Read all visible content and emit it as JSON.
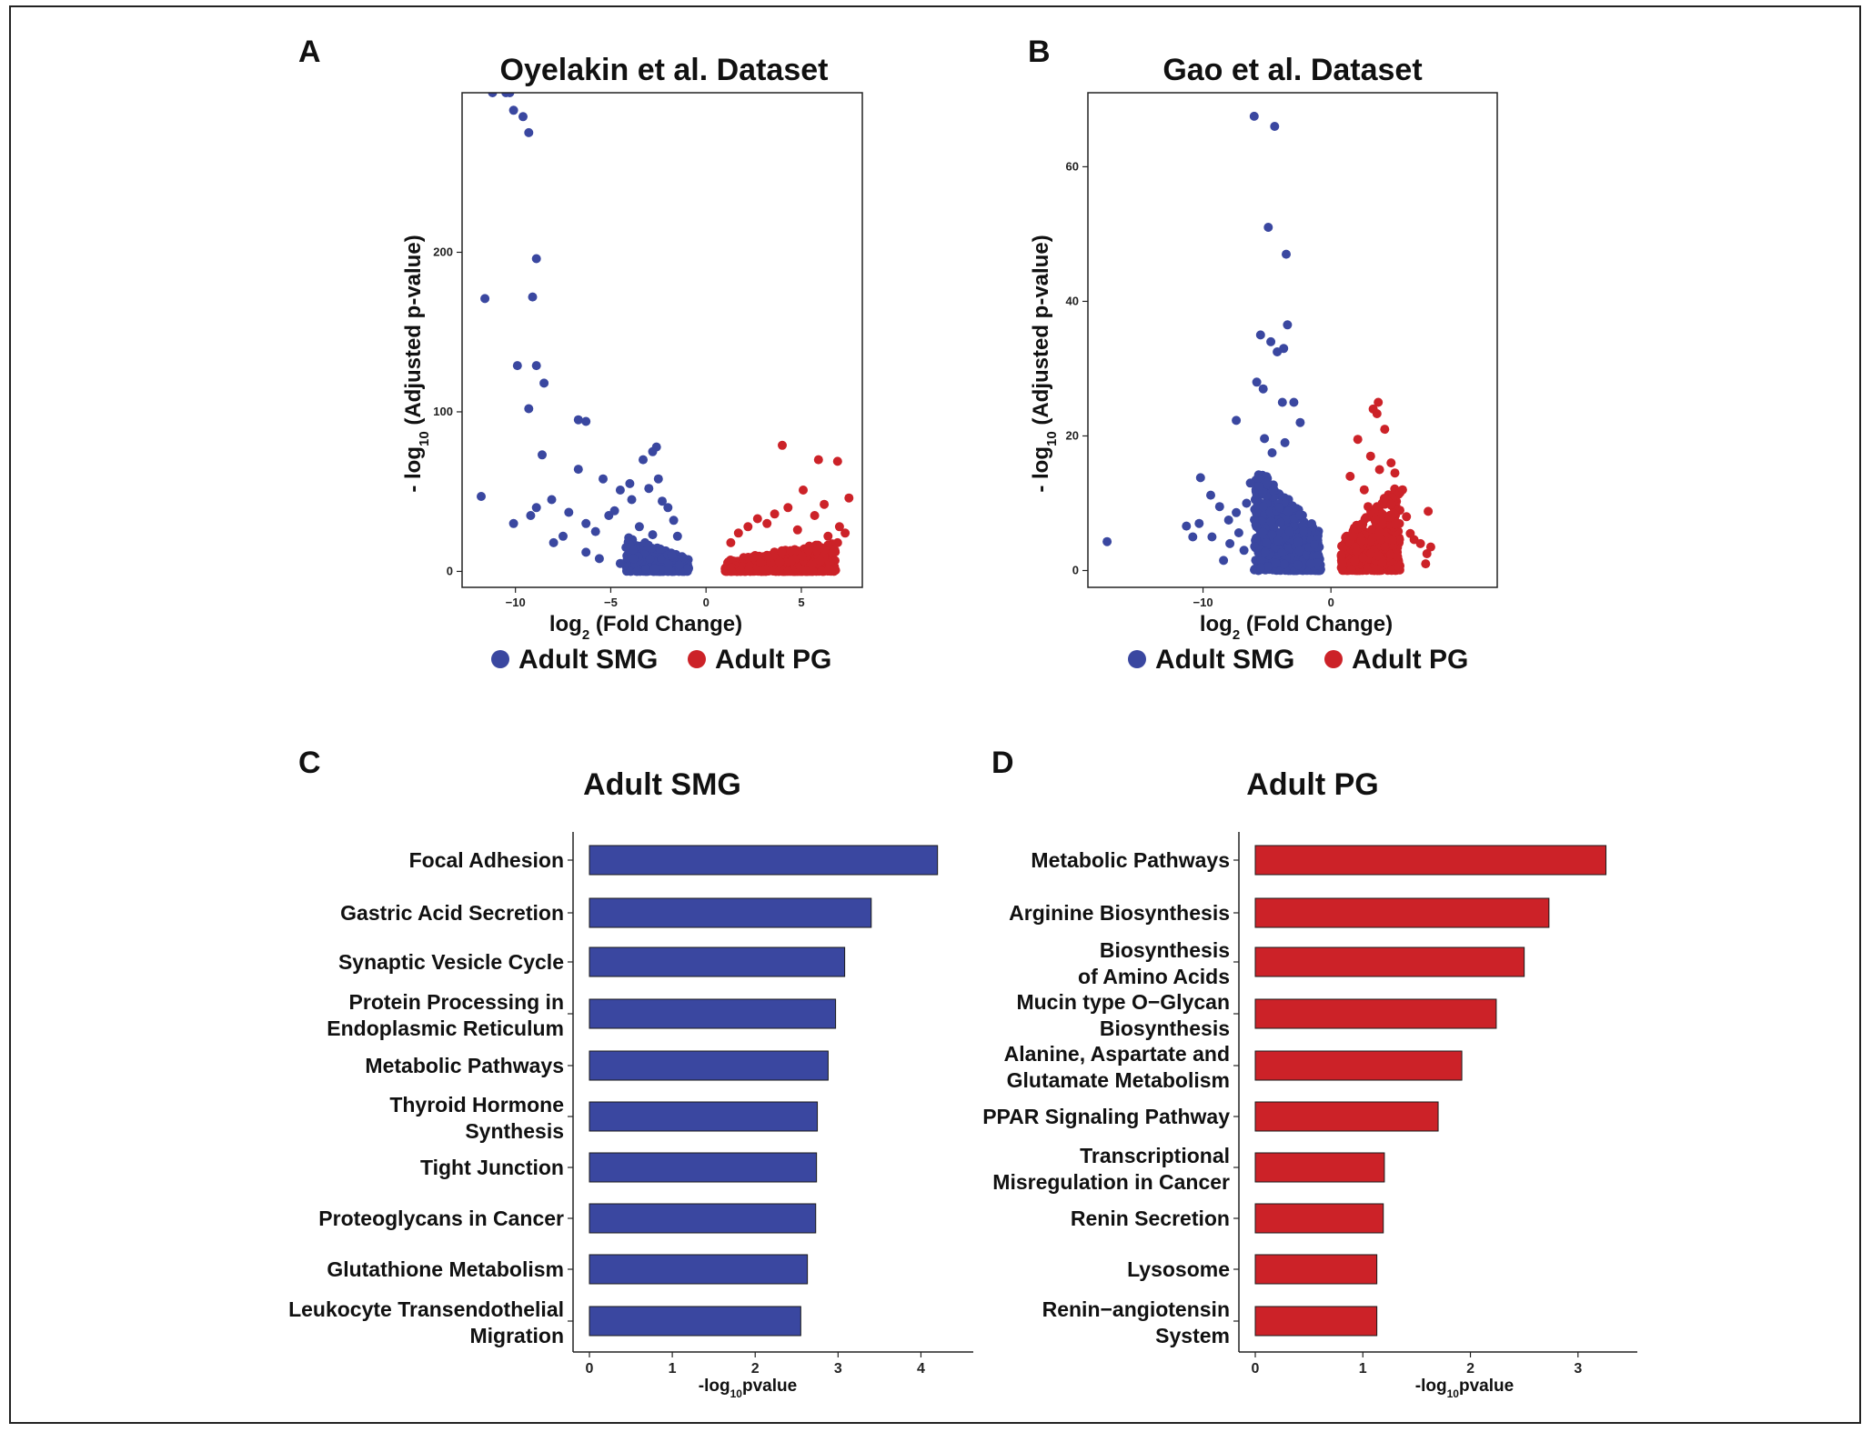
{
  "colors": {
    "smg": "#3a47a0",
    "pg": "#cc2228"
  },
  "panels": [
    {
      "letter": "A",
      "chart_data": {
        "type": "scatter",
        "title": "Oyelakin et al. Dataset",
        "xlabel": "log",
        "xlabel_sub": "2",
        "xlabel_rest": " (Fold Change)",
        "ylabel_pre": "- log",
        "ylabel_sub": "10",
        "ylabel_rest": " (Adjusted p-value)",
        "xlim": [
          -12.8,
          8.2
        ],
        "ylim": [
          -10,
          300
        ],
        "xticks": [
          -10,
          -5,
          0,
          5
        ],
        "yticks": [
          0,
          100,
          200
        ],
        "xtick_labels": [
          "−10",
          "−5",
          "0",
          "5"
        ],
        "ytick_labels": [
          "0",
          "100",
          "200"
        ],
        "legend": [
          "Adult SMG",
          "Adult PG"
        ],
        "series": [
          {
            "name": "Adult SMG",
            "color_key": "smg",
            "points": [
              [
                -11.2,
                300
              ],
              [
                -10.5,
                300
              ],
              [
                -10.3,
                300
              ],
              [
                -10.1,
                289
              ],
              [
                -9.6,
                285
              ],
              [
                -9.3,
                275
              ],
              [
                -11.6,
                171
              ],
              [
                -8.9,
                196
              ],
              [
                -9.1,
                172
              ],
              [
                -9.9,
                129
              ],
              [
                -8.9,
                129
              ],
              [
                -8.5,
                118
              ],
              [
                -9.3,
                102
              ],
              [
                -6.7,
                95
              ],
              [
                -6.3,
                94
              ],
              [
                -8.6,
                73
              ],
              [
                -11.8,
                47
              ],
              [
                -6.7,
                64
              ],
              [
                -5.4,
                58
              ],
              [
                -8.1,
                45
              ],
              [
                -8.9,
                40
              ],
              [
                -9.2,
                35
              ],
              [
                -6.3,
                30
              ],
              [
                -10.1,
                30
              ],
              [
                -7.2,
                37
              ],
              [
                -7.5,
                22
              ],
              [
                -8.0,
                18
              ],
              [
                -4.0,
                55
              ],
              [
                -4.5,
                51
              ],
              [
                -3.9,
                45
              ],
              [
                -2.6,
                78
              ],
              [
                -2.8,
                75
              ],
              [
                -3.3,
                70
              ],
              [
                -2.5,
                58
              ],
              [
                -3.0,
                52
              ],
              [
                -5.1,
                35
              ],
              [
                -4.8,
                38
              ],
              [
                -5.8,
                25
              ],
              [
                -4.2,
                15
              ],
              [
                -5.6,
                8
              ],
              [
                -6.3,
                12
              ],
              [
                -4.5,
                5
              ],
              [
                -2.3,
                44
              ],
              [
                -2.0,
                40
              ],
              [
                -1.7,
                32
              ],
              [
                -3.5,
                28
              ],
              [
                -2.8,
                23
              ],
              [
                -1.5,
                22
              ],
              [
                -3.2,
                18
              ],
              [
                -2.4,
                14
              ],
              [
                -1.8,
                10
              ],
              [
                -1.2,
                8
              ],
              [
                -3.8,
                8
              ],
              [
                -1.4,
                4
              ]
            ],
            "cluster": {
              "x": [
                -4.2,
                -0.9
              ],
              "y": [
                0,
                22
              ],
              "n": 420
            }
          },
          {
            "name": "Adult PG",
            "color_key": "pg",
            "points": [
              [
                4.0,
                79
              ],
              [
                5.9,
                70
              ],
              [
                6.9,
                69
              ],
              [
                5.1,
                51
              ],
              [
                7.5,
                46
              ],
              [
                6.2,
                42
              ],
              [
                5.7,
                35
              ],
              [
                4.3,
                40
              ],
              [
                7.0,
                28
              ],
              [
                7.3,
                24
              ],
              [
                3.2,
                30
              ],
              [
                2.7,
                33
              ],
              [
                3.6,
                36
              ],
              [
                1.7,
                24
              ],
              [
                2.2,
                28
              ],
              [
                1.3,
                18
              ],
              [
                4.8,
                26
              ],
              [
                6.4,
                22
              ],
              [
                6.9,
                18
              ]
            ],
            "cluster": {
              "x": [
                1.0,
                6.8
              ],
              "y": [
                0,
                19
              ],
              "n": 650
            }
          }
        ]
      }
    },
    {
      "letter": "B",
      "chart_data": {
        "type": "scatter",
        "title": "Gao et al. Dataset",
        "xlabel": "log",
        "xlabel_sub": "2",
        "xlabel_rest": " (Fold Change)",
        "ylabel_pre": "- log",
        "ylabel_sub": "10",
        "ylabel_rest": " (Adjusted p-value)",
        "xlim": [
          -19,
          13
        ],
        "ylim": [
          -2.5,
          71
        ],
        "xticks": [
          -10,
          0
        ],
        "yticks": [
          0,
          20,
          40,
          60
        ],
        "xtick_labels": [
          "−10",
          "0"
        ],
        "ytick_labels": [
          "0",
          "20",
          "40",
          "60"
        ],
        "legend": [
          "Adult SMG",
          "Adult PG"
        ],
        "series": [
          {
            "name": "Adult SMG",
            "color_key": "smg",
            "points": [
              [
                -6.0,
                67.5
              ],
              [
                -4.4,
                66
              ],
              [
                -4.9,
                51
              ],
              [
                -3.5,
                47
              ],
              [
                -3.4,
                36.5
              ],
              [
                -4.7,
                34
              ],
              [
                -3.7,
                33
              ],
              [
                -5.5,
                35
              ],
              [
                -4.2,
                32.5
              ],
              [
                -5.8,
                28
              ],
              [
                -5.3,
                27
              ],
              [
                -3.8,
                25
              ],
              [
                -2.9,
                25
              ],
              [
                -7.4,
                22.3
              ],
              [
                -2.4,
                22
              ],
              [
                -5.2,
                19.6
              ],
              [
                -3.6,
                19
              ],
              [
                -4.6,
                17.5
              ],
              [
                -17.5,
                4.3
              ],
              [
                -10.2,
                13.8
              ],
              [
                -9.4,
                11.2
              ],
              [
                -10.3,
                7
              ],
              [
                -11.3,
                6.6
              ],
              [
                -10.8,
                5
              ],
              [
                -8.7,
                9.5
              ],
              [
                -8.0,
                7.5
              ],
              [
                -7.4,
                8.6
              ],
              [
                -9.3,
                5
              ],
              [
                -7.9,
                4
              ],
              [
                -6.3,
                13
              ],
              [
                -5.6,
                12.5
              ],
              [
                -6.6,
                10
              ],
              [
                -5.3,
                9.5
              ],
              [
                -7.2,
                5.6
              ],
              [
                -6.8,
                3
              ],
              [
                -8.4,
                1.5
              ]
            ],
            "cluster": {
              "x": [
                -6.0,
                -0.8
              ],
              "y": [
                0,
                16
              ],
              "n": 550
            }
          },
          {
            "name": "Adult PG",
            "color_key": "pg",
            "points": [
              [
                3.7,
                25
              ],
              [
                3.6,
                23.3
              ],
              [
                3.3,
                24
              ],
              [
                4.2,
                21
              ],
              [
                2.1,
                19.5
              ],
              [
                4.7,
                16
              ],
              [
                3.8,
                15
              ],
              [
                3.1,
                17
              ],
              [
                5.0,
                14.5
              ],
              [
                2.6,
                12
              ],
              [
                5.6,
                12
              ],
              [
                5.9,
                8
              ],
              [
                4.9,
                8.5
              ],
              [
                6.2,
                5.5
              ],
              [
                7.0,
                4
              ],
              [
                6.5,
                4.6
              ],
              [
                7.5,
                2.5
              ],
              [
                7.4,
                1
              ],
              [
                7.8,
                3.5
              ],
              [
                7.6,
                8.8
              ],
              [
                2.9,
                9.5
              ],
              [
                1.5,
                14
              ]
            ],
            "cluster": {
              "x": [
                0.8,
                5.4
              ],
              "y": [
                0,
                13
              ],
              "n": 500
            }
          }
        ]
      }
    }
  ],
  "bars": [
    {
      "letter": "C",
      "chart_data": {
        "type": "bar",
        "orientation": "horizontal",
        "title": "Adult SMG",
        "xlabel_pre": "-log",
        "xlabel_sub": "10",
        "xlabel_rest": "pvalue",
        "color_key": "smg",
        "xlim": [
          -0.2,
          4.5
        ],
        "xticks": [
          0,
          1,
          2,
          3,
          4
        ],
        "categories": [
          [
            "Focal Adhesion"
          ],
          [
            "Gastric Acid Secretion"
          ],
          [
            "Synaptic Vesicle Cycle"
          ],
          [
            "Protein Processing in",
            "Endoplasmic Reticulum"
          ],
          [
            "Metabolic Pathways"
          ],
          [
            "Thyroid Hormone",
            "Synthesis"
          ],
          [
            "Tight Junction"
          ],
          [
            "Proteoglycans in Cancer"
          ],
          [
            "Glutathione Metabolism"
          ],
          [
            "Leukocyte Transendothelial",
            "Migration"
          ]
        ],
        "values": [
          4.2,
          3.4,
          3.08,
          2.97,
          2.88,
          2.75,
          2.74,
          2.73,
          2.63,
          2.55
        ]
      }
    },
    {
      "letter": "D",
      "chart_data": {
        "type": "bar",
        "orientation": "horizontal",
        "title": "Adult PG",
        "xlabel_pre": "-log",
        "xlabel_sub": "10",
        "xlabel_rest": "pvalue",
        "color_key": "pg",
        "xlim": [
          -0.05,
          3.45
        ],
        "xticks": [
          0,
          1,
          2,
          3
        ],
        "categories": [
          [
            "Metabolic Pathways"
          ],
          [
            "Arginine Biosynthesis"
          ],
          [
            "Biosynthesis",
            "of Amino Acids"
          ],
          [
            "Mucin type O−Glycan",
            "Biosynthesis"
          ],
          [
            "Alanine, Aspartate and",
            "Glutamate Metabolism"
          ],
          [
            "PPAR Signaling Pathway"
          ],
          [
            "Transcriptional",
            "Misregulation in Cancer"
          ],
          [
            "Renin Secretion"
          ],
          [
            "Lysosome"
          ],
          [
            "Renin−angiotensin",
            "System"
          ]
        ],
        "values": [
          3.26,
          2.73,
          2.5,
          2.24,
          1.92,
          1.7,
          1.2,
          1.19,
          1.13,
          1.13
        ]
      }
    }
  ]
}
